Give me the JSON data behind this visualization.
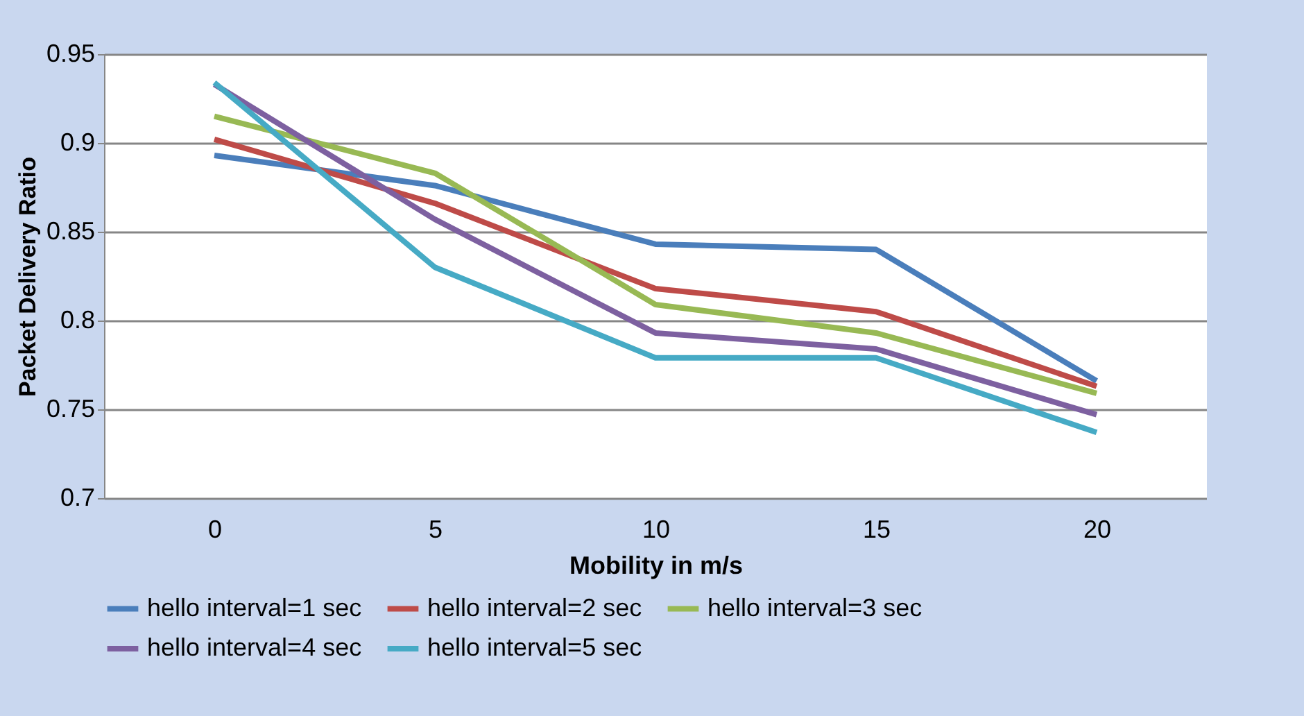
{
  "chart_data": {
    "type": "line",
    "xlabel": "Mobility in m/s",
    "ylabel": "Packet Delivery Ratio",
    "categories": [
      "0",
      "5",
      "10",
      "15",
      "20"
    ],
    "series": [
      {
        "name": "hello interval=1 sec",
        "color": "#4a7ebb",
        "values": [
          0.893,
          0.876,
          0.843,
          0.84,
          0.766
        ]
      },
      {
        "name": "hello interval=2 sec",
        "color": "#be4b48",
        "values": [
          0.902,
          0.866,
          0.818,
          0.805,
          0.763
        ]
      },
      {
        "name": "hello interval=3 sec",
        "color": "#98b954",
        "values": [
          0.915,
          0.883,
          0.809,
          0.793,
          0.759
        ]
      },
      {
        "name": "hello interval=4 sec",
        "color": "#7d60a0",
        "values": [
          0.933,
          0.857,
          0.793,
          0.784,
          0.747
        ]
      },
      {
        "name": "hello interval=5 sec",
        "color": "#46aac5",
        "values": [
          0.934,
          0.83,
          0.779,
          0.779,
          0.737
        ]
      }
    ],
    "ylim": [
      0.7,
      0.95
    ],
    "yticks": [
      0.7,
      0.75,
      0.8,
      0.85,
      0.9,
      0.95
    ],
    "grid": "y",
    "legend": "bottom",
    "marker": "none",
    "line_style": "solid"
  }
}
